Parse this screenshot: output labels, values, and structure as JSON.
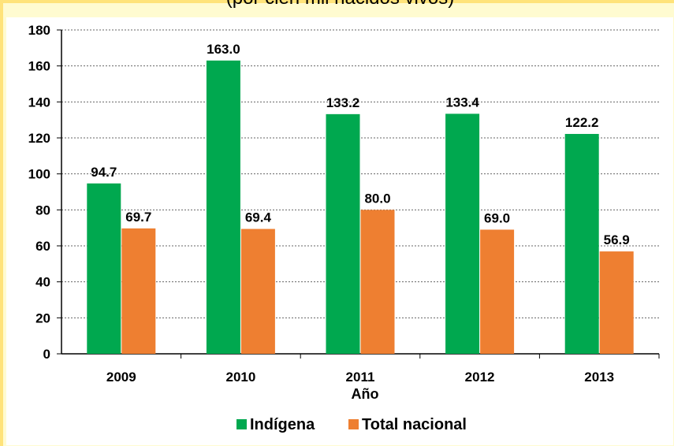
{
  "subtitle": "(por cien mil nacidos vivos)",
  "chart_data": {
    "type": "bar",
    "title": "",
    "subtitle": "(por cien mil nacidos vivos)",
    "xlabel": "Año",
    "ylabel": "",
    "categories": [
      "2009",
      "2010",
      "2011",
      "2012",
      "2013"
    ],
    "ylim": [
      0,
      180
    ],
    "yticks": [
      0,
      20,
      40,
      60,
      80,
      100,
      120,
      140,
      160,
      180
    ],
    "grid": "horizontal dotted",
    "legend_position": "bottom",
    "series": [
      {
        "name": "Indígena",
        "values": [
          94.7,
          163.0,
          133.2,
          133.4,
          122.2
        ],
        "labels": [
          "94.7",
          "163.0",
          "133.2",
          "133.4",
          "122.2"
        ],
        "color": "#00a84f"
      },
      {
        "name": "Total nacional",
        "values": [
          69.7,
          69.4,
          80.0,
          69.0,
          56.9
        ],
        "labels": [
          "69.7",
          "69.4",
          "80.0",
          "69.0",
          "56.9"
        ],
        "color": "#ee7f31"
      }
    ]
  }
}
